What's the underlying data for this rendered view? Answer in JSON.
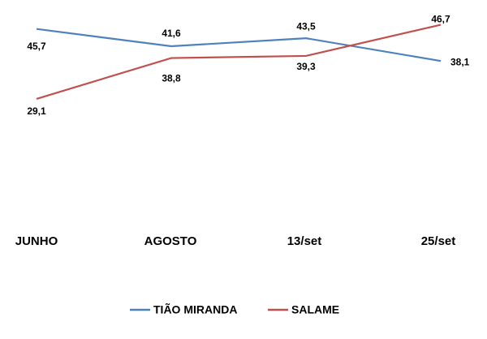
{
  "chart_data": {
    "type": "line",
    "categories": [
      "JUNHO",
      "AGOSTO",
      "13/set",
      "25/set"
    ],
    "series": [
      {
        "name": "TIÃO MIRANDA",
        "color": "#4f81bd",
        "values": [
          45.7,
          41.6,
          43.5,
          38.1
        ],
        "value_labels": [
          "45,7",
          "41,6",
          "43,5",
          "38,1"
        ]
      },
      {
        "name": "SALAME",
        "color": "#c0504d",
        "values": [
          29.1,
          38.8,
          39.3,
          46.7
        ],
        "value_labels": [
          "29,1",
          "38,8",
          "39,3",
          "46,7"
        ]
      }
    ],
    "ylim": [
      0,
      52
    ],
    "legend": "bottom"
  }
}
